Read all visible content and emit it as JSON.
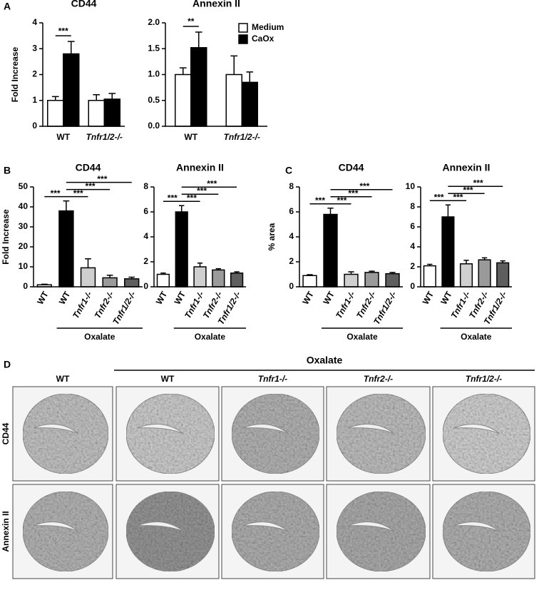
{
  "chart_data": [
    {
      "type": "bar",
      "panel_label": "A",
      "title": "CD44",
      "ylabel": "Fold Increase",
      "categories": [
        "WT",
        "Tnfr1/2-/-"
      ],
      "series": [
        {
          "color": "#ffffff",
          "values": [
            1.0,
            1.0
          ],
          "errors": [
            0.15,
            0.22
          ]
        },
        {
          "color": "#000000",
          "values": [
            2.8,
            1.05
          ],
          "errors": [
            0.48,
            0.22
          ]
        }
      ],
      "ylim": [
        0,
        4
      ],
      "yticks": [
        0,
        1,
        2,
        3,
        4
      ],
      "significance": [
        "***"
      ]
    },
    {
      "type": "bar",
      "title": "Annexin II",
      "categories": [
        "WT",
        "Tnfr1/2-/-"
      ],
      "series": [
        {
          "name": "Medium",
          "color": "#ffffff",
          "values": [
            1.0,
            1.0
          ],
          "errors": [
            0.13,
            0.36
          ]
        },
        {
          "name": "CaOx",
          "color": "#000000",
          "values": [
            1.52,
            0.85
          ],
          "errors": [
            0.3,
            0.2
          ]
        }
      ],
      "ylim": [
        0,
        2
      ],
      "yticks": [
        {
          "value": 0,
          "label": "0.0"
        },
        0.5,
        {
          "value": 1,
          "label": "1.0"
        },
        1.5,
        {
          "value": 2,
          "label": "2.0"
        }
      ],
      "legend": "top-right",
      "significance": [
        "**"
      ]
    },
    {
      "type": "bar",
      "panel_label": "B",
      "title": "CD44",
      "ylabel": "Fold Increase",
      "categories": [
        "WT",
        "WT",
        "Tnfr1-/-",
        "Tnfr2-/-",
        "Tnfr1/2-/-"
      ],
      "values": [
        1,
        38,
        9.5,
        4.5,
        4
      ],
      "errors": [
        0.3,
        5,
        4.5,
        1.3,
        0.8
      ],
      "colors": [
        "#ffffff",
        "#000000",
        "#cfcfcf",
        "#9a9a9a",
        "#5e5e5e"
      ],
      "ylim": [
        0,
        50
      ],
      "yticks": [
        0,
        10,
        20,
        30,
        40,
        50
      ],
      "group_label": "Oxalate",
      "significance": [
        "***",
        "***",
        "***",
        "***"
      ]
    },
    {
      "type": "bar",
      "title": "Annexin II",
      "categories": [
        "WT",
        "WT",
        "Tnfr1-/-",
        "Tnfr2-/-",
        "Tnfr1/2-/-"
      ],
      "values": [
        1.0,
        6.0,
        1.6,
        1.35,
        1.1
      ],
      "errors": [
        0.1,
        0.5,
        0.3,
        0.1,
        0.1
      ],
      "colors": [
        "#ffffff",
        "#000000",
        "#cfcfcf",
        "#9a9a9a",
        "#5e5e5e"
      ],
      "ylim": [
        0,
        8
      ],
      "yticks": [
        0,
        2,
        4,
        6,
        8
      ],
      "group_label": "Oxalate",
      "significance": [
        "***",
        "***",
        "***",
        "***"
      ]
    },
    {
      "type": "bar",
      "panel_label": "C",
      "title": "CD44",
      "ylabel": "% area",
      "categories": [
        "WT",
        "WT",
        "Tnfr1-/-",
        "Tnfr2-/-",
        "Tnfr1/2-/-"
      ],
      "values": [
        0.9,
        5.8,
        1.0,
        1.15,
        1.05
      ],
      "errors": [
        0.07,
        0.5,
        0.2,
        0.1,
        0.1
      ],
      "colors": [
        "#ffffff",
        "#000000",
        "#cfcfcf",
        "#9a9a9a",
        "#5e5e5e"
      ],
      "ylim": [
        0,
        8
      ],
      "yticks": [
        0,
        2,
        4,
        6,
        8
      ],
      "group_label": "Oxalate",
      "significance": [
        "***",
        "***",
        "***",
        "***"
      ]
    },
    {
      "type": "bar",
      "title": "Annexin II",
      "categories": [
        "WT",
        "WT",
        "Tnfr1-/-",
        "Tnfr2-/-",
        "Tnfr1/2-/-"
      ],
      "values": [
        2.1,
        7.0,
        2.3,
        2.7,
        2.4
      ],
      "errors": [
        0.15,
        1.2,
        0.35,
        0.2,
        0.2
      ],
      "colors": [
        "#ffffff",
        "#000000",
        "#cfcfcf",
        "#9a9a9a",
        "#5e5e5e"
      ],
      "ylim": [
        0,
        10
      ],
      "yticks": [
        0,
        2,
        4,
        6,
        8,
        10
      ],
      "group_label": "Oxalate",
      "significance": [
        "***",
        "***",
        "***",
        "***"
      ]
    }
  ],
  "panel_d": {
    "label": "D",
    "group_label": "Oxalate",
    "columns": [
      "WT",
      "WT",
      "Tnfr1-/-",
      "Tnfr2-/-",
      "Tnfr1/2-/-"
    ],
    "rows": [
      "CD44",
      "Annexin II"
    ]
  }
}
